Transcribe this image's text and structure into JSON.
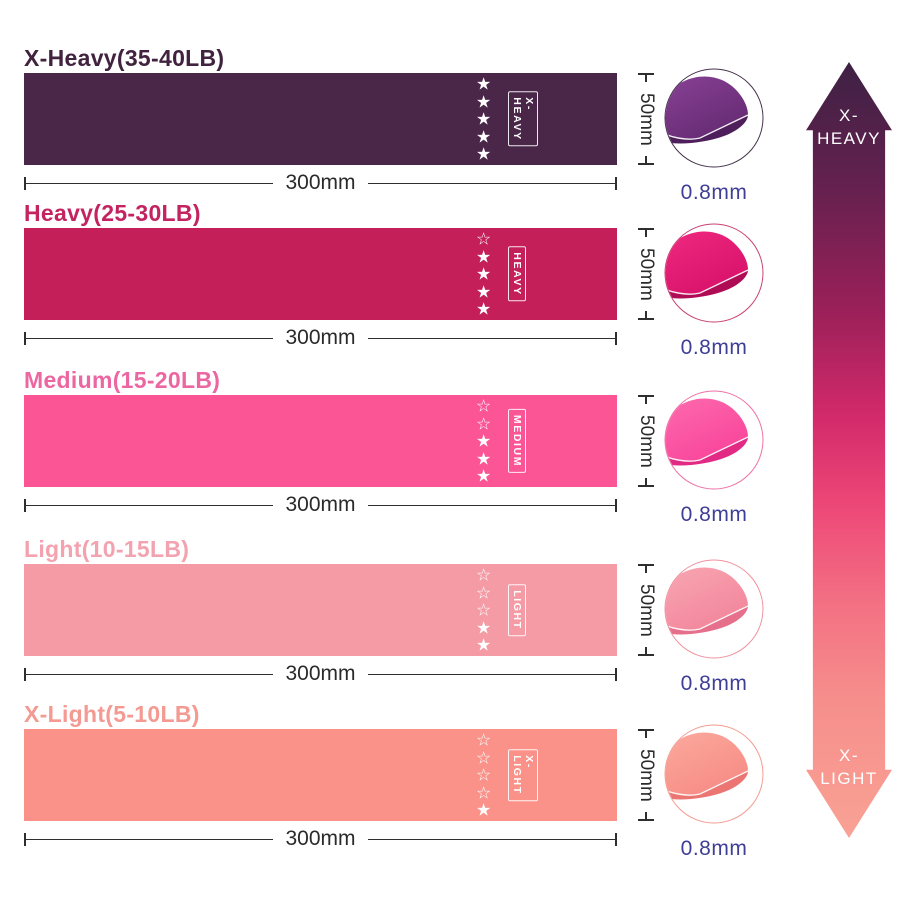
{
  "stars_total": 5,
  "star_glyphs": {
    "filled": "★",
    "empty": "☆"
  },
  "dim_text_color": "#3e3e96",
  "rows": [
    {
      "title": "X-Heavy(35-40LB)",
      "band_label": "X-HEAVY",
      "stars_filled": 5,
      "width_label": "300mm",
      "height_label": "50mm",
      "thickness_label": "0.8mm",
      "colors": {
        "title": "#41233f",
        "band": "#4a2749",
        "circle_outline": "#45334a",
        "fold_light": "#8a4296",
        "fold_main": "#652a72",
        "fold_under": "#4e1f5a"
      }
    },
    {
      "title": "Heavy(25-30LB)",
      "band_label": "HEAVY",
      "stars_filled": 4,
      "width_label": "300mm",
      "height_label": "50mm",
      "thickness_label": "0.8mm",
      "colors": {
        "title": "#c32360",
        "band": "#c41f58",
        "circle_outline": "#c84272",
        "fold_light": "#ef2a80",
        "fold_main": "#d8116a",
        "fold_under": "#b00c56"
      }
    },
    {
      "title": "Medium(15-20LB)",
      "band_label": "MEDIUM",
      "stars_filled": 3,
      "width_label": "300mm",
      "height_label": "50mm",
      "thickness_label": "0.8mm",
      "colors": {
        "title": "#ec67a2",
        "band": "#fc5596",
        "circle_outline": "#ef71a5",
        "fold_light": "#fd6cae",
        "fold_main": "#f9449b",
        "fold_under": "#e22a85"
      }
    },
    {
      "title": "Light(10-15LB)",
      "band_label": "LIGHT",
      "stars_filled": 2,
      "width_label": "300mm",
      "height_label": "50mm",
      "thickness_label": "0.8mm",
      "colors": {
        "title": "#f3a2af",
        "band": "#f59ba5",
        "circle_outline": "#f0919f",
        "fold_light": "#f8a8b3",
        "fold_main": "#f2859b",
        "fold_under": "#e66f8c"
      }
    },
    {
      "title": "X-Light(5-10LB)",
      "band_label": "X-LIGHT",
      "stars_filled": 1,
      "width_label": "300mm",
      "height_label": "50mm",
      "thickness_label": "0.8mm",
      "colors": {
        "title": "#f49a92",
        "band": "#fa928a",
        "circle_outline": "#f49b91",
        "fold_light": "#fcab9f",
        "fold_main": "#f68b84",
        "fold_under": "#ea7572"
      }
    }
  ],
  "arrow": {
    "top_label": [
      "X-",
      "HEAVY"
    ],
    "bottom_label": [
      "X-",
      "LIGHT"
    ],
    "gradient_css": "linear-gradient(180deg,#3e2144 0%,#64214f 16%,#9b2059 32%,#d42a6b 46%,#ee4a78 58%,#f37183 70%,#f68e8c 82%,#f9a294 100%)"
  }
}
